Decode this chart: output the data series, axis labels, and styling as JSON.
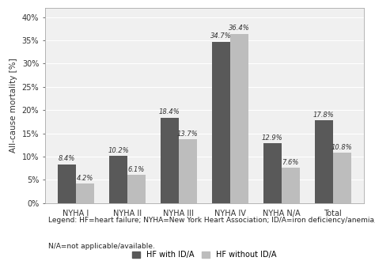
{
  "categories": [
    "NYHA I",
    "NYHA II",
    "NYHA III",
    "NYHA IV",
    "NYHA N/A",
    "Total"
  ],
  "hf_with_ida": [
    8.4,
    10.2,
    18.4,
    34.7,
    12.9,
    17.8
  ],
  "hf_without_ida": [
    4.2,
    6.1,
    13.7,
    36.4,
    7.6,
    10.8
  ],
  "color_with_ida": "#595959",
  "color_without_ida": "#bdbdbd",
  "ylabel": "All-cause mortality [%]",
  "yticks": [
    0,
    5,
    10,
    15,
    20,
    25,
    30,
    35,
    40
  ],
  "ytick_labels": [
    "0%",
    "5%",
    "10%",
    "15%",
    "20%",
    "25%",
    "30%",
    "35%",
    "40%"
  ],
  "legend_with": "HF with ID/A",
  "legend_without": "HF without ID/A",
  "chart_bg": "#f0f0f0",
  "outer_bg": "#ffffff",
  "bar_width": 0.35,
  "legend_text_size": 7,
  "axis_label_size": 7.5,
  "tick_label_size": 7,
  "value_label_size": 6,
  "caption_line1": "Legend: HF=heart failure; NYHA=New York Heart Association; ID/A=iron deficiency/anemia;",
  "caption_line2": "N/A=not applicable/available."
}
